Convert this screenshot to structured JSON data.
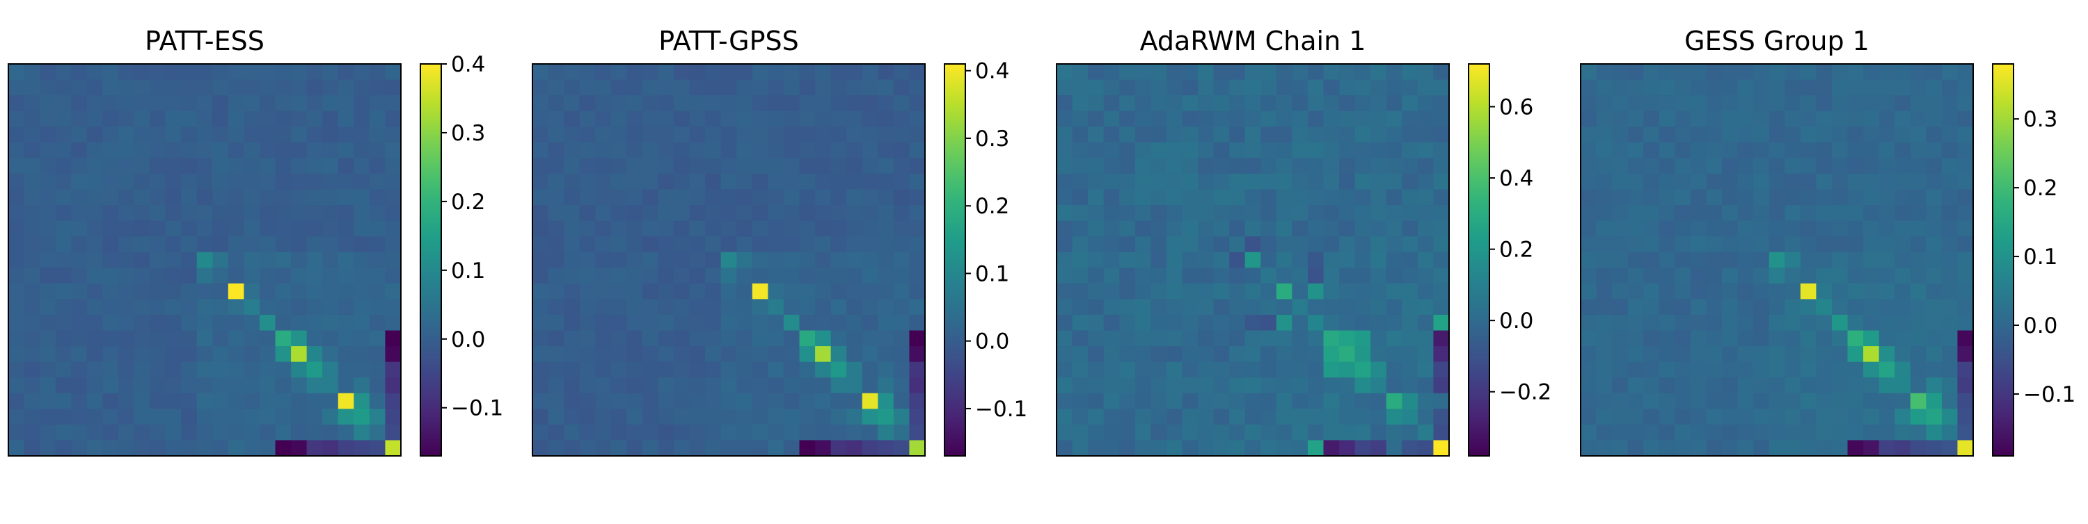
{
  "chart_data": [
    {
      "type": "heatmap",
      "title": "PATT-ESS",
      "size": 25,
      "colorscale": "viridis",
      "colorbar": {
        "vmin": -0.17,
        "vmax": 0.4,
        "ticks": [
          -0.1,
          0.0,
          0.1,
          0.2,
          0.3,
          0.4
        ],
        "tick_labels": [
          "−0.1",
          "0.0",
          "0.1",
          "0.2",
          "0.3",
          "0.4"
        ]
      },
      "diagonal": [
        0.02,
        0.01,
        0.01,
        0.01,
        0.01,
        0.01,
        0.01,
        0.01,
        0.01,
        0.01,
        0.01,
        0.01,
        0.1,
        0.02,
        0.4,
        0.07,
        0.11,
        0.18,
        0.33,
        0.14,
        0.07,
        0.39,
        0.14,
        0.04,
        0.35
      ],
      "offdiag": [
        {
          "i": 24,
          "j": 17,
          "v": -0.17
        },
        {
          "i": 17,
          "j": 24,
          "v": -0.17
        },
        {
          "i": 24,
          "j": 18,
          "v": -0.16
        },
        {
          "i": 18,
          "j": 24,
          "v": -0.16
        },
        {
          "i": 24,
          "j": 19,
          "v": -0.08
        },
        {
          "i": 19,
          "j": 24,
          "v": -0.08
        },
        {
          "i": 24,
          "j": 20,
          "v": -0.09
        },
        {
          "i": 20,
          "j": 24,
          "v": -0.09
        },
        {
          "i": 24,
          "j": 21,
          "v": -0.06
        },
        {
          "i": 21,
          "j": 24,
          "v": -0.06
        },
        {
          "i": 24,
          "j": 22,
          "v": -0.05
        },
        {
          "i": 22,
          "j": 24,
          "v": -0.05
        },
        {
          "i": 24,
          "j": 23,
          "v": -0.04
        },
        {
          "i": 23,
          "j": 24,
          "v": -0.04
        },
        {
          "i": 18,
          "j": 17,
          "v": 0.12
        },
        {
          "i": 17,
          "j": 18,
          "v": 0.12
        },
        {
          "i": 19,
          "j": 18,
          "v": 0.09
        },
        {
          "i": 18,
          "j": 19,
          "v": 0.09
        },
        {
          "i": 20,
          "j": 19,
          "v": 0.07
        },
        {
          "i": 19,
          "j": 20,
          "v": 0.07
        },
        {
          "i": 22,
          "j": 21,
          "v": 0.12
        },
        {
          "i": 21,
          "j": 22,
          "v": 0.12
        },
        {
          "i": 23,
          "j": 22,
          "v": 0.08
        },
        {
          "i": 22,
          "j": 23,
          "v": 0.08
        },
        {
          "i": 22,
          "j": 20,
          "v": 0.05
        },
        {
          "i": 20,
          "j": 22,
          "v": 0.05
        },
        {
          "i": 15,
          "j": 14,
          "v": 0.04
        },
        {
          "i": 14,
          "j": 15,
          "v": 0.04
        },
        {
          "i": 13,
          "j": 12,
          "v": 0.05
        },
        {
          "i": 12,
          "j": 13,
          "v": 0.05
        }
      ]
    },
    {
      "type": "heatmap",
      "title": "PATT-GPSS",
      "size": 25,
      "colorscale": "viridis",
      "colorbar": {
        "vmin": -0.17,
        "vmax": 0.41,
        "ticks": [
          -0.1,
          0.0,
          0.1,
          0.2,
          0.3,
          0.4
        ],
        "tick_labels": [
          "−0.1",
          "0.0",
          "0.1",
          "0.2",
          "0.3",
          "0.4"
        ]
      },
      "diagonal": [
        0.02,
        0.01,
        0.01,
        0.01,
        0.01,
        0.01,
        0.01,
        0.01,
        0.01,
        0.01,
        0.01,
        0.01,
        0.1,
        0.02,
        0.4,
        0.07,
        0.11,
        0.18,
        0.33,
        0.14,
        0.07,
        0.39,
        0.14,
        0.04,
        0.33
      ],
      "offdiag": [
        {
          "i": 24,
          "j": 17,
          "v": -0.17
        },
        {
          "i": 17,
          "j": 24,
          "v": -0.17
        },
        {
          "i": 24,
          "j": 18,
          "v": -0.15
        },
        {
          "i": 18,
          "j": 24,
          "v": -0.15
        },
        {
          "i": 24,
          "j": 19,
          "v": -0.08
        },
        {
          "i": 19,
          "j": 24,
          "v": -0.08
        },
        {
          "i": 24,
          "j": 20,
          "v": -0.09
        },
        {
          "i": 20,
          "j": 24,
          "v": -0.09
        },
        {
          "i": 24,
          "j": 21,
          "v": -0.06
        },
        {
          "i": 21,
          "j": 24,
          "v": -0.06
        },
        {
          "i": 24,
          "j": 22,
          "v": -0.05
        },
        {
          "i": 22,
          "j": 24,
          "v": -0.05
        },
        {
          "i": 24,
          "j": 23,
          "v": -0.04
        },
        {
          "i": 23,
          "j": 24,
          "v": -0.04
        },
        {
          "i": 18,
          "j": 17,
          "v": 0.12
        },
        {
          "i": 17,
          "j": 18,
          "v": 0.12
        },
        {
          "i": 19,
          "j": 18,
          "v": 0.09
        },
        {
          "i": 18,
          "j": 19,
          "v": 0.09
        },
        {
          "i": 20,
          "j": 19,
          "v": 0.07
        },
        {
          "i": 19,
          "j": 20,
          "v": 0.07
        },
        {
          "i": 22,
          "j": 21,
          "v": 0.12
        },
        {
          "i": 21,
          "j": 22,
          "v": 0.12
        },
        {
          "i": 23,
          "j": 22,
          "v": 0.08
        },
        {
          "i": 22,
          "j": 23,
          "v": 0.08
        },
        {
          "i": 22,
          "j": 20,
          "v": 0.05
        },
        {
          "i": 20,
          "j": 22,
          "v": 0.05
        },
        {
          "i": 15,
          "j": 14,
          "v": 0.04
        },
        {
          "i": 14,
          "j": 15,
          "v": 0.04
        },
        {
          "i": 13,
          "j": 12,
          "v": 0.05
        },
        {
          "i": 12,
          "j": 13,
          "v": 0.05
        }
      ]
    },
    {
      "type": "heatmap",
      "title": "AdaRWM Chain 1",
      "size": 25,
      "colorscale": "viridis",
      "colorbar": {
        "vmin": -0.38,
        "vmax": 0.72,
        "ticks": [
          -0.2,
          0.0,
          0.2,
          0.4,
          0.6
        ],
        "tick_labels": [
          "−0.2",
          "0.0",
          "0.2",
          "0.4",
          "0.6"
        ]
      },
      "diagonal": [
        0.05,
        0.03,
        0.02,
        0.02,
        0.02,
        0.02,
        0.02,
        0.03,
        0.02,
        0.02,
        0.02,
        0.02,
        0.2,
        0.05,
        0.3,
        0.08,
        0.12,
        0.28,
        0.3,
        0.25,
        0.1,
        0.3,
        0.12,
        0.08,
        0.72
      ],
      "offdiag": [
        {
          "i": 24,
          "j": 16,
          "v": 0.25
        },
        {
          "i": 16,
          "j": 24,
          "v": 0.25
        },
        {
          "i": 24,
          "j": 17,
          "v": -0.3
        },
        {
          "i": 17,
          "j": 24,
          "v": -0.3
        },
        {
          "i": 24,
          "j": 18,
          "v": -0.25
        },
        {
          "i": 18,
          "j": 24,
          "v": -0.25
        },
        {
          "i": 24,
          "j": 19,
          "v": -0.15
        },
        {
          "i": 19,
          "j": 24,
          "v": -0.15
        },
        {
          "i": 24,
          "j": 20,
          "v": -0.18
        },
        {
          "i": 20,
          "j": 24,
          "v": -0.18
        },
        {
          "i": 24,
          "j": 22,
          "v": -0.1
        },
        {
          "i": 22,
          "j": 24,
          "v": -0.1
        },
        {
          "i": 24,
          "j": 23,
          "v": -0.12
        },
        {
          "i": 23,
          "j": 24,
          "v": -0.12
        },
        {
          "i": 16,
          "j": 12,
          "v": -0.08
        },
        {
          "i": 12,
          "j": 16,
          "v": -0.08
        },
        {
          "i": 16,
          "j": 14,
          "v": 0.18
        },
        {
          "i": 14,
          "j": 16,
          "v": 0.18
        },
        {
          "i": 16,
          "j": 13,
          "v": -0.1
        },
        {
          "i": 13,
          "j": 16,
          "v": -0.1
        },
        {
          "i": 18,
          "j": 17,
          "v": 0.25
        },
        {
          "i": 17,
          "j": 18,
          "v": 0.25
        },
        {
          "i": 19,
          "j": 17,
          "v": 0.22
        },
        {
          "i": 17,
          "j": 19,
          "v": 0.22
        },
        {
          "i": 19,
          "j": 18,
          "v": 0.2
        },
        {
          "i": 18,
          "j": 19,
          "v": 0.2
        },
        {
          "i": 20,
          "j": 19,
          "v": 0.15
        },
        {
          "i": 19,
          "j": 20,
          "v": 0.15
        },
        {
          "i": 22,
          "j": 21,
          "v": 0.15
        },
        {
          "i": 21,
          "j": 22,
          "v": 0.15
        },
        {
          "i": 12,
          "j": 11,
          "v": -0.1
        },
        {
          "i": 11,
          "j": 12,
          "v": -0.1
        }
      ]
    },
    {
      "type": "heatmap",
      "title": "GESS Group 1",
      "size": 25,
      "colorscale": "viridis",
      "colorbar": {
        "vmin": -0.19,
        "vmax": 0.38,
        "ticks": [
          -0.1,
          0.0,
          0.1,
          0.2,
          0.3
        ],
        "tick_labels": [
          "−0.1",
          "0.0",
          "0.1",
          "0.2",
          "0.3"
        ]
      },
      "diagonal": [
        0.02,
        0.01,
        0.01,
        0.01,
        0.01,
        0.01,
        0.01,
        0.01,
        0.01,
        0.01,
        0.01,
        0.01,
        0.1,
        0.02,
        0.36,
        0.07,
        0.11,
        0.17,
        0.31,
        0.14,
        0.07,
        0.21,
        0.14,
        0.04,
        0.36
      ],
      "offdiag": [
        {
          "i": 24,
          "j": 17,
          "v": -0.18
        },
        {
          "i": 17,
          "j": 24,
          "v": -0.18
        },
        {
          "i": 24,
          "j": 18,
          "v": -0.16
        },
        {
          "i": 18,
          "j": 24,
          "v": -0.16
        },
        {
          "i": 24,
          "j": 19,
          "v": -0.08
        },
        {
          "i": 19,
          "j": 24,
          "v": -0.08
        },
        {
          "i": 24,
          "j": 20,
          "v": -0.09
        },
        {
          "i": 20,
          "j": 24,
          "v": -0.09
        },
        {
          "i": 24,
          "j": 21,
          "v": -0.06
        },
        {
          "i": 21,
          "j": 24,
          "v": -0.06
        },
        {
          "i": 24,
          "j": 22,
          "v": -0.05
        },
        {
          "i": 22,
          "j": 24,
          "v": -0.05
        },
        {
          "i": 24,
          "j": 23,
          "v": -0.04
        },
        {
          "i": 23,
          "j": 24,
          "v": -0.04
        },
        {
          "i": 18,
          "j": 17,
          "v": 0.12
        },
        {
          "i": 17,
          "j": 18,
          "v": 0.12
        },
        {
          "i": 19,
          "j": 18,
          "v": 0.09
        },
        {
          "i": 18,
          "j": 19,
          "v": 0.09
        },
        {
          "i": 20,
          "j": 19,
          "v": 0.07
        },
        {
          "i": 19,
          "j": 20,
          "v": 0.07
        },
        {
          "i": 22,
          "j": 21,
          "v": 0.12
        },
        {
          "i": 21,
          "j": 22,
          "v": 0.12
        },
        {
          "i": 23,
          "j": 22,
          "v": 0.08
        },
        {
          "i": 22,
          "j": 23,
          "v": 0.08
        },
        {
          "i": 22,
          "j": 20,
          "v": 0.06
        },
        {
          "i": 20,
          "j": 22,
          "v": 0.06
        },
        {
          "i": 15,
          "j": 14,
          "v": 0.04
        },
        {
          "i": 14,
          "j": 15,
          "v": 0.04
        },
        {
          "i": 13,
          "j": 12,
          "v": 0.05
        },
        {
          "i": 12,
          "j": 13,
          "v": 0.05
        }
      ]
    }
  ]
}
